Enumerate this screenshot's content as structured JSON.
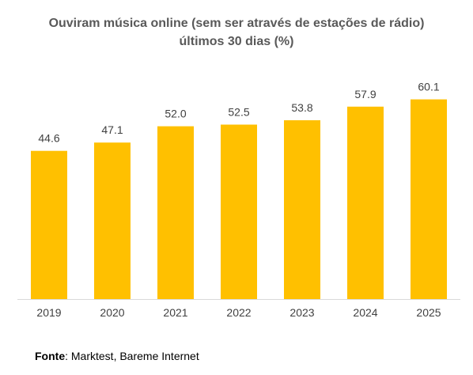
{
  "chart_data": {
    "type": "bar",
    "title_line1": "Ouviram música online (sem ser através de estações de rádio)",
    "title_line2": "últimos 30 dias (%)",
    "categories": [
      "2019",
      "2020",
      "2021",
      "2022",
      "2023",
      "2024",
      "2025"
    ],
    "values": [
      44.6,
      47.1,
      52.0,
      52.5,
      53.8,
      57.9,
      60.1
    ],
    "value_labels": [
      "44.6",
      "47.1",
      "52.0",
      "52.5",
      "53.8",
      "57.9",
      "60.1"
    ],
    "bar_color": "#FFC000",
    "ylim": [
      0,
      62
    ],
    "grid": false,
    "legend": "none"
  },
  "source": {
    "label": "Fonte",
    "text": ": Marktest, Bareme Internet"
  }
}
